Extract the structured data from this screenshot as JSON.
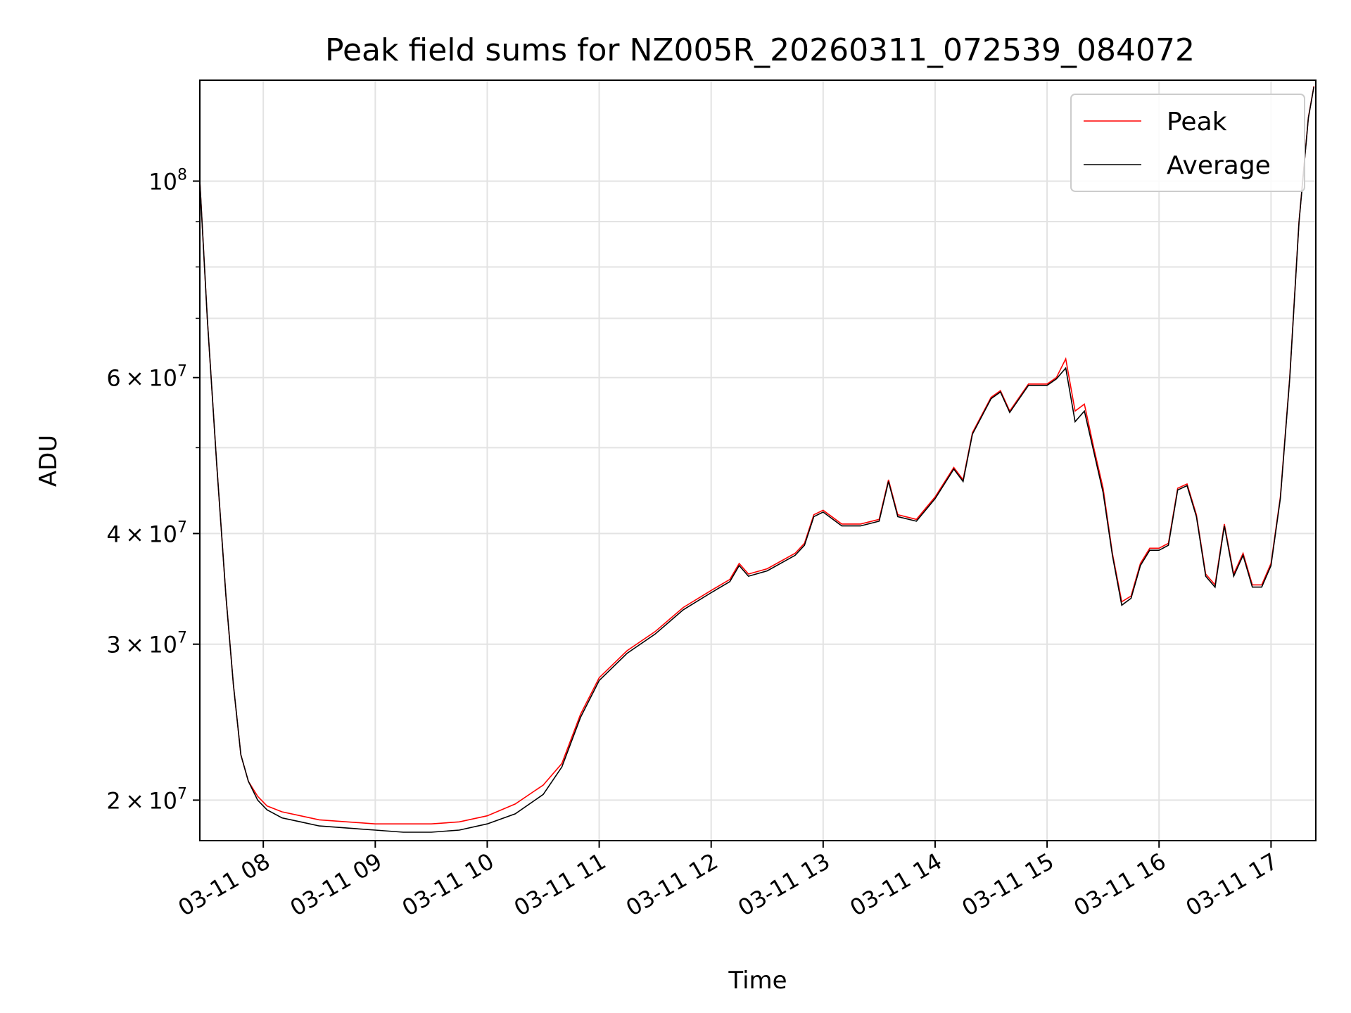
{
  "chart_data": {
    "type": "line",
    "title": "Peak field sums for NZ005R_20260311_072539_084072",
    "xlabel": "Time",
    "ylabel": "ADU",
    "yscale": "log",
    "grid": true,
    "legend_position": "upper right",
    "xlim": [
      "2026-03-11T07:26",
      "2026-03-11T17:24"
    ],
    "ylim": [
      18000000,
      130000000
    ],
    "x_ticks": [
      {
        "value": "2026-03-11T08:00",
        "label": "03-11 08"
      },
      {
        "value": "2026-03-11T09:00",
        "label": "03-11 09"
      },
      {
        "value": "2026-03-11T10:00",
        "label": "03-11 10"
      },
      {
        "value": "2026-03-11T11:00",
        "label": "03-11 11"
      },
      {
        "value": "2026-03-11T12:00",
        "label": "03-11 12"
      },
      {
        "value": "2026-03-11T13:00",
        "label": "03-11 13"
      },
      {
        "value": "2026-03-11T14:00",
        "label": "03-11 14"
      },
      {
        "value": "2026-03-11T15:00",
        "label": "03-11 15"
      },
      {
        "value": "2026-03-11T16:00",
        "label": "03-11 16"
      },
      {
        "value": "2026-03-11T17:00",
        "label": "03-11 17"
      }
    ],
    "y_ticks": [
      {
        "value": 20000000,
        "mantissa": "2",
        "base": "10",
        "exp": "7"
      },
      {
        "value": 30000000,
        "mantissa": "3",
        "base": "10",
        "exp": "7"
      },
      {
        "value": 40000000,
        "mantissa": "4",
        "base": "10",
        "exp": "7"
      },
      {
        "value": 60000000,
        "mantissa": "6",
        "base": "10",
        "exp": "7"
      },
      {
        "value": 100000000,
        "mantissa": "",
        "base": "10",
        "exp": "8"
      }
    ],
    "y_minor_ticks": [
      50000000,
      70000000,
      80000000,
      90000000
    ],
    "series": [
      {
        "name": "Peak",
        "color": "#ff0000",
        "points": [
          [
            "2026-03-11T07:26",
            100000000
          ],
          [
            "2026-03-11T07:30",
            70000000
          ],
          [
            "2026-03-11T07:35",
            48000000
          ],
          [
            "2026-03-11T07:40",
            34000000
          ],
          [
            "2026-03-11T07:44",
            27000000
          ],
          [
            "2026-03-11T07:48",
            22500000
          ],
          [
            "2026-03-11T07:52",
            21000000
          ],
          [
            "2026-03-11T07:57",
            20200000
          ],
          [
            "2026-03-11T08:02",
            19700000
          ],
          [
            "2026-03-11T08:10",
            19400000
          ],
          [
            "2026-03-11T08:20",
            19200000
          ],
          [
            "2026-03-11T08:30",
            19000000
          ],
          [
            "2026-03-11T08:45",
            18900000
          ],
          [
            "2026-03-11T09:00",
            18800000
          ],
          [
            "2026-03-11T09:15",
            18800000
          ],
          [
            "2026-03-11T09:30",
            18800000
          ],
          [
            "2026-03-11T09:45",
            18900000
          ],
          [
            "2026-03-11T10:00",
            19200000
          ],
          [
            "2026-03-11T10:15",
            19800000
          ],
          [
            "2026-03-11T10:30",
            20800000
          ],
          [
            "2026-03-11T10:40",
            22000000
          ],
          [
            "2026-03-11T10:50",
            25000000
          ],
          [
            "2026-03-11T11:00",
            27500000
          ],
          [
            "2026-03-11T11:15",
            29500000
          ],
          [
            "2026-03-11T11:30",
            31000000
          ],
          [
            "2026-03-11T11:45",
            33000000
          ],
          [
            "2026-03-11T12:00",
            34500000
          ],
          [
            "2026-03-11T12:10",
            35500000
          ],
          [
            "2026-03-11T12:15",
            37000000
          ],
          [
            "2026-03-11T12:20",
            36000000
          ],
          [
            "2026-03-11T12:30",
            36500000
          ],
          [
            "2026-03-11T12:45",
            38000000
          ],
          [
            "2026-03-11T12:50",
            39000000
          ],
          [
            "2026-03-11T12:55",
            42000000
          ],
          [
            "2026-03-11T13:00",
            42500000
          ],
          [
            "2026-03-11T13:10",
            41000000
          ],
          [
            "2026-03-11T13:20",
            41000000
          ],
          [
            "2026-03-11T13:30",
            41500000
          ],
          [
            "2026-03-11T13:35",
            46000000
          ],
          [
            "2026-03-11T13:40",
            42000000
          ],
          [
            "2026-03-11T13:50",
            41500000
          ],
          [
            "2026-03-11T14:00",
            44000000
          ],
          [
            "2026-03-11T14:10",
            47500000
          ],
          [
            "2026-03-11T14:15",
            46000000
          ],
          [
            "2026-03-11T14:20",
            52000000
          ],
          [
            "2026-03-11T14:30",
            57000000
          ],
          [
            "2026-03-11T14:35",
            58000000
          ],
          [
            "2026-03-11T14:40",
            55000000
          ],
          [
            "2026-03-11T14:50",
            59000000
          ],
          [
            "2026-03-11T15:00",
            59000000
          ],
          [
            "2026-03-11T15:05",
            60000000
          ],
          [
            "2026-03-11T15:10",
            63000000
          ],
          [
            "2026-03-11T15:15",
            55000000
          ],
          [
            "2026-03-11T15:20",
            56000000
          ],
          [
            "2026-03-11T15:25",
            50000000
          ],
          [
            "2026-03-11T15:30",
            45000000
          ],
          [
            "2026-03-11T15:35",
            38000000
          ],
          [
            "2026-03-11T15:40",
            33500000
          ],
          [
            "2026-03-11T15:45",
            34000000
          ],
          [
            "2026-03-11T15:50",
            37000000
          ],
          [
            "2026-03-11T15:55",
            38500000
          ],
          [
            "2026-03-11T16:00",
            38500000
          ],
          [
            "2026-03-11T16:05",
            39000000
          ],
          [
            "2026-03-11T16:10",
            45000000
          ],
          [
            "2026-03-11T16:15",
            45500000
          ],
          [
            "2026-03-11T16:20",
            42000000
          ],
          [
            "2026-03-11T16:25",
            36000000
          ],
          [
            "2026-03-11T16:30",
            35000000
          ],
          [
            "2026-03-11T16:35",
            41000000
          ],
          [
            "2026-03-11T16:40",
            36000000
          ],
          [
            "2026-03-11T16:45",
            38000000
          ],
          [
            "2026-03-11T16:50",
            35000000
          ],
          [
            "2026-03-11T16:55",
            35000000
          ],
          [
            "2026-03-11T17:00",
            37000000
          ],
          [
            "2026-03-11T17:05",
            44000000
          ],
          [
            "2026-03-11T17:10",
            60000000
          ],
          [
            "2026-03-11T17:15",
            90000000
          ],
          [
            "2026-03-11T17:20",
            118000000
          ],
          [
            "2026-03-11T17:23",
            128000000
          ]
        ]
      },
      {
        "name": "Average",
        "color": "#000000",
        "points": [
          [
            "2026-03-11T07:26",
            100000000
          ],
          [
            "2026-03-11T07:30",
            70000000
          ],
          [
            "2026-03-11T07:35",
            48000000
          ],
          [
            "2026-03-11T07:40",
            34000000
          ],
          [
            "2026-03-11T07:44",
            27000000
          ],
          [
            "2026-03-11T07:48",
            22500000
          ],
          [
            "2026-03-11T07:52",
            21000000
          ],
          [
            "2026-03-11T07:57",
            20000000
          ],
          [
            "2026-03-11T08:02",
            19500000
          ],
          [
            "2026-03-11T08:10",
            19100000
          ],
          [
            "2026-03-11T08:20",
            18900000
          ],
          [
            "2026-03-11T08:30",
            18700000
          ],
          [
            "2026-03-11T08:45",
            18600000
          ],
          [
            "2026-03-11T09:00",
            18500000
          ],
          [
            "2026-03-11T09:15",
            18400000
          ],
          [
            "2026-03-11T09:30",
            18400000
          ],
          [
            "2026-03-11T09:45",
            18500000
          ],
          [
            "2026-03-11T10:00",
            18800000
          ],
          [
            "2026-03-11T10:15",
            19300000
          ],
          [
            "2026-03-11T10:30",
            20300000
          ],
          [
            "2026-03-11T10:40",
            21800000
          ],
          [
            "2026-03-11T10:50",
            24800000
          ],
          [
            "2026-03-11T11:00",
            27300000
          ],
          [
            "2026-03-11T11:15",
            29300000
          ],
          [
            "2026-03-11T11:30",
            30800000
          ],
          [
            "2026-03-11T11:45",
            32800000
          ],
          [
            "2026-03-11T12:00",
            34300000
          ],
          [
            "2026-03-11T12:10",
            35300000
          ],
          [
            "2026-03-11T12:15",
            36800000
          ],
          [
            "2026-03-11T12:20",
            35800000
          ],
          [
            "2026-03-11T12:30",
            36300000
          ],
          [
            "2026-03-11T12:45",
            37800000
          ],
          [
            "2026-03-11T12:50",
            38800000
          ],
          [
            "2026-03-11T12:55",
            41800000
          ],
          [
            "2026-03-11T13:00",
            42300000
          ],
          [
            "2026-03-11T13:10",
            40800000
          ],
          [
            "2026-03-11T13:20",
            40800000
          ],
          [
            "2026-03-11T13:30",
            41300000
          ],
          [
            "2026-03-11T13:35",
            45800000
          ],
          [
            "2026-03-11T13:40",
            41800000
          ],
          [
            "2026-03-11T13:50",
            41300000
          ],
          [
            "2026-03-11T14:00",
            43800000
          ],
          [
            "2026-03-11T14:10",
            47300000
          ],
          [
            "2026-03-11T14:15",
            45800000
          ],
          [
            "2026-03-11T14:20",
            51800000
          ],
          [
            "2026-03-11T14:30",
            56800000
          ],
          [
            "2026-03-11T14:35",
            57800000
          ],
          [
            "2026-03-11T14:40",
            54800000
          ],
          [
            "2026-03-11T14:50",
            58800000
          ],
          [
            "2026-03-11T15:00",
            58800000
          ],
          [
            "2026-03-11T15:05",
            59800000
          ],
          [
            "2026-03-11T15:10",
            61500000
          ],
          [
            "2026-03-11T15:15",
            53500000
          ],
          [
            "2026-03-11T15:20",
            55000000
          ],
          [
            "2026-03-11T15:25",
            49500000
          ],
          [
            "2026-03-11T15:30",
            44500000
          ],
          [
            "2026-03-11T15:35",
            37800000
          ],
          [
            "2026-03-11T15:40",
            33200000
          ],
          [
            "2026-03-11T15:45",
            33800000
          ],
          [
            "2026-03-11T15:50",
            36800000
          ],
          [
            "2026-03-11T15:55",
            38300000
          ],
          [
            "2026-03-11T16:00",
            38300000
          ],
          [
            "2026-03-11T16:05",
            38800000
          ],
          [
            "2026-03-11T16:10",
            44800000
          ],
          [
            "2026-03-11T16:15",
            45300000
          ],
          [
            "2026-03-11T16:20",
            41800000
          ],
          [
            "2026-03-11T16:25",
            35800000
          ],
          [
            "2026-03-11T16:30",
            34800000
          ],
          [
            "2026-03-11T16:35",
            40800000
          ],
          [
            "2026-03-11T16:40",
            35800000
          ],
          [
            "2026-03-11T16:45",
            37800000
          ],
          [
            "2026-03-11T16:50",
            34800000
          ],
          [
            "2026-03-11T16:55",
            34800000
          ],
          [
            "2026-03-11T17:00",
            36800000
          ],
          [
            "2026-03-11T17:05",
            43800000
          ],
          [
            "2026-03-11T17:10",
            59800000
          ],
          [
            "2026-03-11T17:15",
            89800000
          ],
          [
            "2026-03-11T17:20",
            117800000
          ],
          [
            "2026-03-11T17:23",
            127800000
          ]
        ]
      }
    ]
  }
}
